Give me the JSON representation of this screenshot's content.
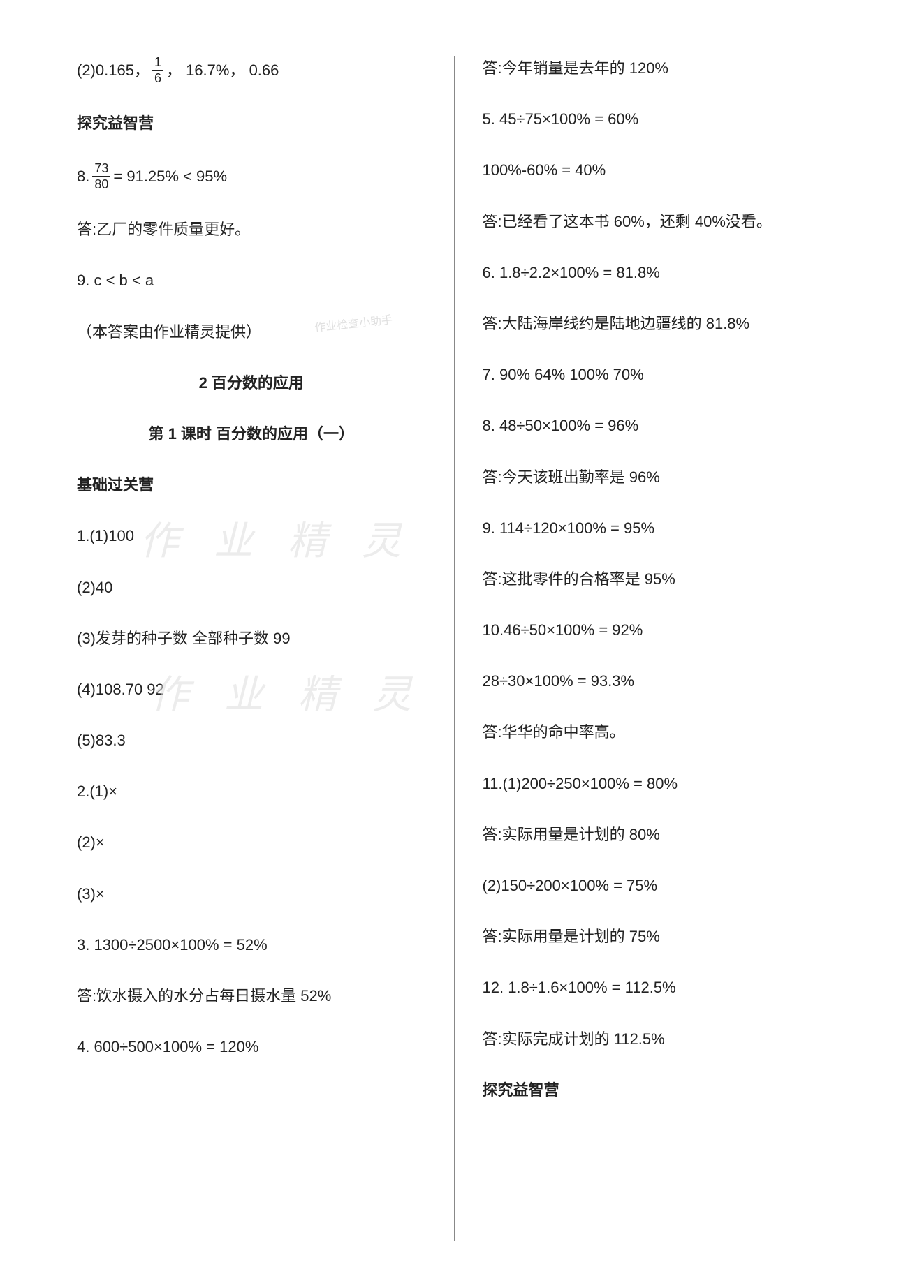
{
  "left": {
    "l1_prefix": "(2)0.165，",
    "l1_frac_num": "1",
    "l1_frac_den": "6",
    "l1_suffix": "， 16.7%， 0.66",
    "h1": "探究益智营",
    "l2_prefix": "8.  ",
    "l2_frac_num": "73",
    "l2_frac_den": "80",
    "l2_suffix": " = 91.25% < 95%",
    "l3": "答:乙厂的零件质量更好。",
    "l4": "9.   c < b < a",
    "l5": "（本答案由作业精灵提供）",
    "h2": "2  百分数的应用",
    "h3": "第 1 课时  百分数的应用（一）",
    "h4": "基础过关营",
    "l6": "1.(1)100",
    "l7": "(2)40",
    "l8": "(3)发芽的种子数   全部种子数  99",
    "l9": "(4)108.70   92",
    "l10": "(5)83.3",
    "l11": "2.(1)×",
    "l12": "(2)×",
    "l13": "(3)×",
    "l14": "3.   1300÷2500×100% = 52%",
    "l15": "答:饮水摄入的水分占每日摄水量 52%",
    "l16": "4.   600÷500×100% = 120%"
  },
  "right": {
    "r1": "答:今年销量是去年的 120%",
    "r2": "5.   45÷75×100% = 60%",
    "r3": "100%-60% = 40%",
    "r4": "答:已经看了这本书 60%，还剩 40%没看。",
    "r5": "6.   1.8÷2.2×100% = 81.8%",
    "r6": "答:大陆海岸线约是陆地边疆线的 81.8%",
    "r7": "7.   90%    64%    100%    70%",
    "r8": "8.   48÷50×100% = 96%",
    "r9": "答:今天该班出勤率是 96%",
    "r10": "9.   114÷120×100% = 95%",
    "r11": "答:这批零件的合格率是 95%",
    "r12": "10.46÷50×100% = 92%",
    "r13": "28÷30×100% = 93.3%",
    "r14": "答:华华的命中率高。",
    "r15": "11.(1)200÷250×100% = 80%",
    "r16": "答:实际用量是计划的 80%",
    "r17": "(2)150÷200×100% = 75%",
    "r18": "答:实际用量是计划的 75%",
    "r19": "12.   1.8÷1.6×100% = 112.5%",
    "r20": "答:实际完成计划的 112.5%",
    "h5": "探究益智营"
  },
  "watermarks": {
    "wm1": "作 业 精 灵",
    "wm2": "作 业 精 灵",
    "stamp": "作业检查小助手"
  }
}
